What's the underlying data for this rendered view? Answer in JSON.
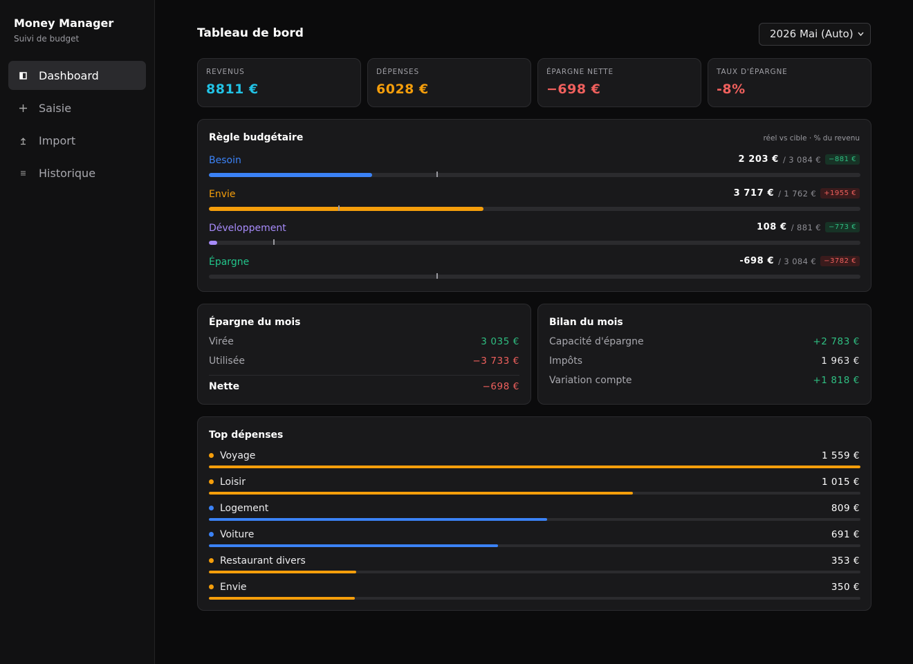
{
  "sidebar": {
    "title": "Money Manager",
    "subtitle": "Suivi de budget",
    "nav": [
      "Dashboard",
      "Saisie",
      "Import",
      "Historique"
    ],
    "active": 0
  },
  "header": {
    "title": "Tableau de bord",
    "period": "2026 Mai (Auto)"
  },
  "kpis": [
    {
      "label": "REVENUS",
      "text": "8811 €",
      "value": 8811,
      "color": "#22c3e6"
    },
    {
      "label": "DÉPENSES",
      "text": "6028 €",
      "color": "#f59e0b"
    },
    {
      "label": "ÉPARGNE NETTE",
      "text": "−698 €",
      "color": "#f0605d"
    },
    {
      "label": "TAUX D'ÉPARGNE",
      "text": "-8%",
      "color": "#f0605d"
    }
  ],
  "budget": {
    "title": "Règle budgétaire",
    "note": "réel vs cible · % du revenu",
    "rows": [
      {
        "name": "Besoin",
        "color": "#3b82f6",
        "actual": 2203,
        "actual_text": "2 203 €",
        "target": 3084,
        "target_text": "/ 3 084 €",
        "diff": "−881 €",
        "status": "good"
      },
      {
        "name": "Envie",
        "color": "#f59e0b",
        "actual": 3717,
        "actual_text": "3 717 €",
        "target": 1762,
        "target_text": "/ 1 762 €",
        "diff": "+1955 €",
        "status": "bad"
      },
      {
        "name": "Développement",
        "color": "#a78bfa",
        "actual": 108,
        "actual_text": "108 €",
        "target": 881,
        "target_text": "/ 881 €",
        "diff": "−773 €",
        "status": "good"
      },
      {
        "name": "Épargne",
        "color": "#22c58b",
        "actual": -698,
        "actual_text": "-698 €",
        "target": 3084,
        "target_text": "/ 3 084 €",
        "diff": "−3782 €",
        "status": "bad"
      }
    ]
  },
  "savings": {
    "title": "Épargne du mois",
    "rows": [
      {
        "label": "Virée",
        "text": "3 035 €",
        "tone": "pos"
      },
      {
        "label": "Utilisée",
        "text": "−3 733 €",
        "tone": "neg"
      }
    ],
    "total": {
      "label": "Nette",
      "text": "−698 €",
      "tone": "neg"
    }
  },
  "summary": {
    "title": "Bilan du mois",
    "rows": [
      {
        "label": "Capacité d'épargne",
        "text": "+2 783 €",
        "tone": "pos"
      },
      {
        "label": "Impôts",
        "text": "1 963 €",
        "tone": "neutral"
      },
      {
        "label": "Variation compte",
        "text": "+1 818 €",
        "tone": "pos"
      }
    ]
  },
  "top": {
    "title": "Top dépenses",
    "items": [
      {
        "name": "Voyage",
        "color": "#f59e0b",
        "value": 1559,
        "text": "1 559 €"
      },
      {
        "name": "Loisir",
        "color": "#f59e0b",
        "value": 1015,
        "text": "1 015 €"
      },
      {
        "name": "Logement",
        "color": "#3b82f6",
        "value": 809,
        "text": "809 €"
      },
      {
        "name": "Voiture",
        "color": "#3b82f6",
        "value": 691,
        "text": "691 €"
      },
      {
        "name": "Restaurant divers",
        "color": "#f59e0b",
        "value": 353,
        "text": "353 €"
      },
      {
        "name": "Envie",
        "color": "#f59e0b",
        "value": 350,
        "text": "350 €"
      }
    ]
  }
}
